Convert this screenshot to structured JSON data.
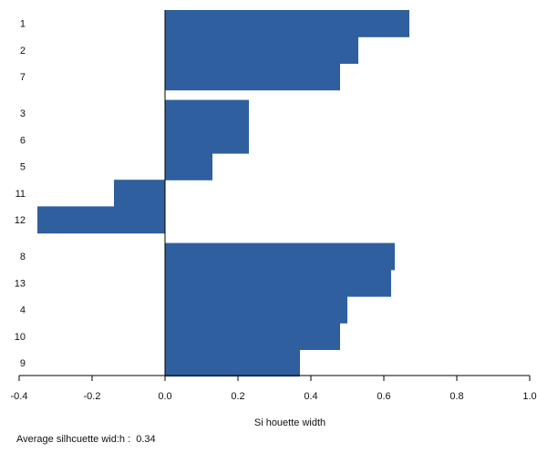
{
  "chart_data": {
    "type": "bar",
    "orientation": "horizontal",
    "xlabel": "Si houette width",
    "ylabel": "",
    "title": "",
    "xlim": [
      -0.4,
      1.0
    ],
    "x_ticks": [
      "-0.4",
      "-0.2",
      "0.0",
      "0.2",
      "0.4",
      "0.6",
      "0.8",
      "1.0"
    ],
    "grid": false,
    "bar_color": "#2f5f9e",
    "clusters": [
      {
        "items": [
          {
            "label": "1",
            "value": 0.67
          },
          {
            "label": "2",
            "value": 0.53
          },
          {
            "label": "7",
            "value": 0.48
          }
        ]
      },
      {
        "items": [
          {
            "label": "3",
            "value": 0.23
          },
          {
            "label": "6",
            "value": 0.23
          },
          {
            "label": "5",
            "value": 0.13
          },
          {
            "label": "11",
            "value": -0.14
          },
          {
            "label": "12",
            "value": -0.35
          }
        ]
      },
      {
        "items": [
          {
            "label": "8",
            "value": 0.63
          },
          {
            "label": "13",
            "value": 0.62
          },
          {
            "label": "4",
            "value": 0.5
          },
          {
            "label": "10",
            "value": 0.48
          },
          {
            "label": "9",
            "value": 0.37
          }
        ]
      }
    ]
  },
  "footer": {
    "average_text": "Average silhcuette wid:h :  0.34"
  }
}
